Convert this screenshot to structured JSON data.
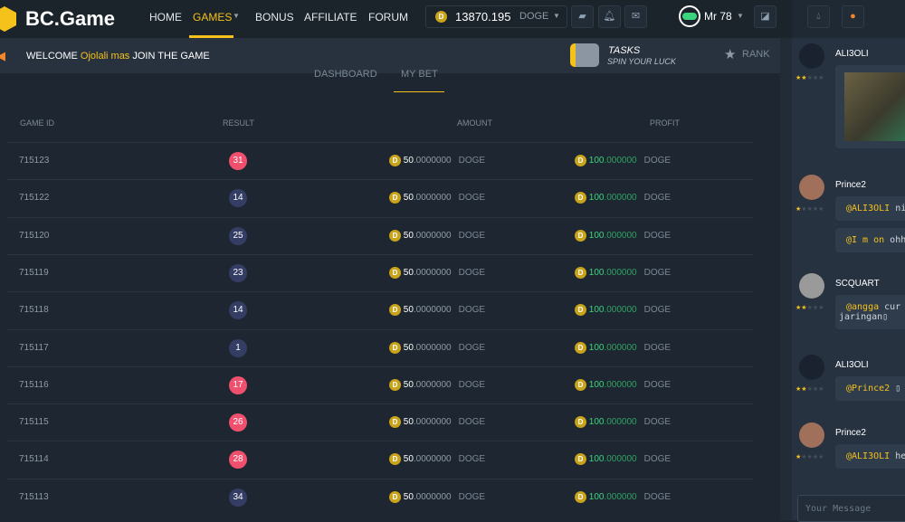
{
  "header": {
    "brand": "BC.Game",
    "nav": [
      "HOME",
      "GAMES",
      "BONUS",
      "AFFILIATE",
      "FORUM"
    ],
    "balance": "13870.195",
    "currency": "DOGE",
    "coin_letter": "D",
    "user": "Mr 78"
  },
  "welcome": {
    "prefix": "WELCOME",
    "name": "Ojolali mas",
    "suffix": "JOIN THE GAME",
    "tasks_title": "TASKS",
    "tasks_sub": "SPIN YOUR LUCK",
    "rank": "RANK"
  },
  "tabs": [
    "DASHBOARD",
    "MY BET"
  ],
  "table": {
    "headers": [
      "GAME ID",
      "RESULT",
      "AMOUNT",
      "PROFIT"
    ],
    "rows": [
      {
        "id": "715123",
        "result": "31",
        "color": "#f0506e",
        "amount_int": "50",
        "amount_dec": ".0000000",
        "profit_int": "100",
        "profit_dec": ".000000",
        "unit": "DOGE"
      },
      {
        "id": "715122",
        "result": "14",
        "color": "#343d63",
        "amount_int": "50",
        "amount_dec": ".0000000",
        "profit_int": "100",
        "profit_dec": ".000000",
        "unit": "DOGE"
      },
      {
        "id": "715120",
        "result": "25",
        "color": "#343d63",
        "amount_int": "50",
        "amount_dec": ".0000000",
        "profit_int": "100",
        "profit_dec": ".000000",
        "unit": "DOGE"
      },
      {
        "id": "715119",
        "result": "23",
        "color": "#343d63",
        "amount_int": "50",
        "amount_dec": ".0000000",
        "profit_int": "100",
        "profit_dec": ".000000",
        "unit": "DOGE"
      },
      {
        "id": "715118",
        "result": "14",
        "color": "#343d63",
        "amount_int": "50",
        "amount_dec": ".0000000",
        "profit_int": "100",
        "profit_dec": ".000000",
        "unit": "DOGE"
      },
      {
        "id": "715117",
        "result": "1",
        "color": "#343d63",
        "amount_int": "50",
        "amount_dec": ".0000000",
        "profit_int": "100",
        "profit_dec": ".000000",
        "unit": "DOGE"
      },
      {
        "id": "715116",
        "result": "17",
        "color": "#f0506e",
        "amount_int": "50",
        "amount_dec": ".0000000",
        "profit_int": "100",
        "profit_dec": ".000000",
        "unit": "DOGE"
      },
      {
        "id": "715115",
        "result": "26",
        "color": "#f0506e",
        "amount_int": "50",
        "amount_dec": ".0000000",
        "profit_int": "100",
        "profit_dec": ".000000",
        "unit": "DOGE"
      },
      {
        "id": "715114",
        "result": "28",
        "color": "#f0506e",
        "amount_int": "50",
        "amount_dec": ".0000000",
        "profit_int": "100",
        "profit_dec": ".000000",
        "unit": "DOGE"
      },
      {
        "id": "715113",
        "result": "34",
        "color": "#343d63",
        "amount_int": "50",
        "amount_dec": ".0000000",
        "profit_int": "100",
        "profit_dec": ".000000",
        "unit": "DOGE"
      }
    ]
  },
  "chat": {
    "placeholder": "Your Message",
    "messages": [
      {
        "user": "ALI3OLI",
        "stars": 1.5,
        "avatar": "#1a2230"
      },
      {
        "user": "Prince2",
        "stars": 0.5,
        "avatar": "#a0705a",
        "bubbles": [
          {
            "mention": "@ALI3OLI",
            "text": " ni"
          },
          {
            "mention": "@I m on",
            "text": " ohh"
          }
        ]
      },
      {
        "user": "SCQUART",
        "stars": 2,
        "avatar": "#9a9a9a",
        "bubbles": [
          {
            "mention": "@angga",
            "text": " cur",
            "line2": "jaringan▯"
          }
        ]
      },
      {
        "user": "ALI3OLI",
        "stars": 1.5,
        "avatar": "#1a2230",
        "bubbles": [
          {
            "mention": "@Prince2",
            "text": " ▯"
          }
        ]
      },
      {
        "user": "Prince2",
        "stars": 0.5,
        "avatar": "#a0705a",
        "bubbles": [
          {
            "mention": "@ALI3OLI",
            "text": " he"
          }
        ]
      }
    ]
  }
}
